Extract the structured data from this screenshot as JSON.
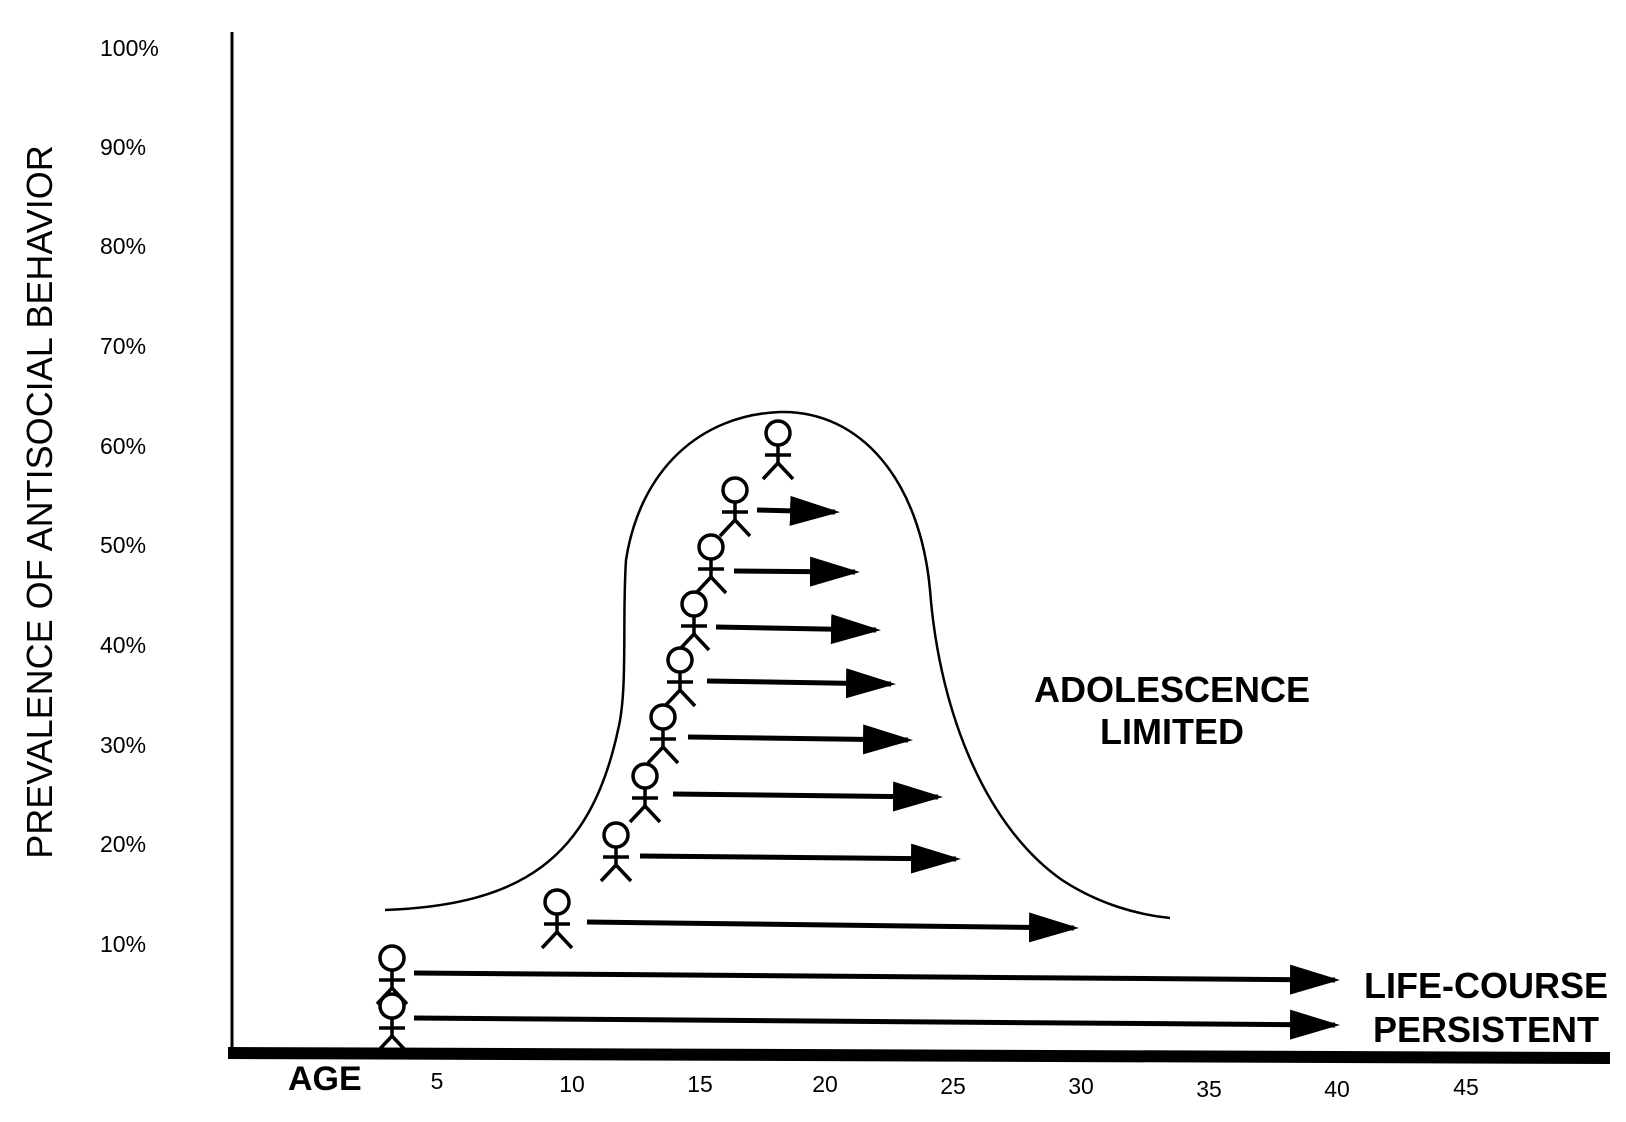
{
  "y_axis": {
    "label": "PREVALENCE OF ANTISOCIAL BEHAVIOR",
    "ticks": [
      "100%",
      "90%",
      "80%",
      "70%",
      "60%",
      "50%",
      "40%",
      "30%",
      "20%",
      "10%"
    ]
  },
  "x_axis": {
    "label": "AGE",
    "ticks": [
      "5",
      "10",
      "15",
      "20",
      "25",
      "30",
      "35",
      "40",
      "45"
    ]
  },
  "groups": {
    "adolescence_limited": [
      "ADOLESCENCE",
      "LIMITED"
    ],
    "life_course_persistent": [
      "LIFE-COURSE",
      "PERSISTENT"
    ]
  },
  "figure_counts": {
    "adolescence_limited_figures": 9,
    "adolescence_limited_arrows": 8,
    "life_course_persistent_figures": 2,
    "life_course_persistent_arrows": 2
  }
}
